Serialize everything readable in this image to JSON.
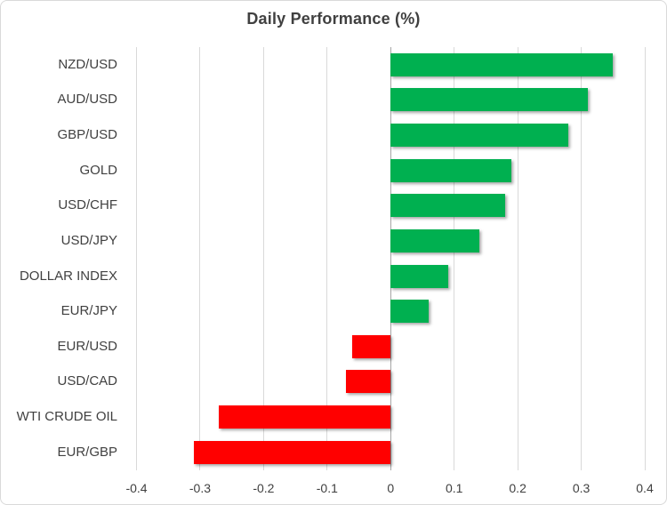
{
  "chart_data": {
    "type": "bar",
    "orientation": "horizontal",
    "title": "Daily Performance (%)",
    "categories": [
      "NZD/USD",
      "AUD/USD",
      "GBP/USD",
      "GOLD",
      "USD/CHF",
      "USD/JPY",
      "DOLLAR INDEX",
      "EUR/JPY",
      "EUR/USD",
      "USD/CAD",
      "WTI CRUDE OIL",
      "EUR/GBP"
    ],
    "values": [
      0.35,
      0.31,
      0.28,
      0.19,
      0.18,
      0.14,
      0.09,
      0.06,
      -0.06,
      -0.07,
      -0.27,
      -0.31
    ],
    "xlabel": "",
    "ylabel": "",
    "xlim": [
      -0.4,
      0.4
    ],
    "xticks": [
      -0.4,
      -0.3,
      -0.2,
      -0.1,
      0,
      0.1,
      0.2,
      0.3,
      0.4
    ],
    "xtick_labels": [
      "-0.4",
      "-0.3",
      "-0.2",
      "-0.1",
      "0",
      "0.1",
      "0.2",
      "0.3",
      "0.4"
    ],
    "grid": true,
    "legend": false,
    "colors": {
      "positive": "#00B050",
      "negative": "#FF0000",
      "gridline": "#D9D9D9",
      "zero_line": "#A6A6A6",
      "text": "#404040",
      "border": "#D9D9D9",
      "background": "#FFFFFF"
    }
  }
}
